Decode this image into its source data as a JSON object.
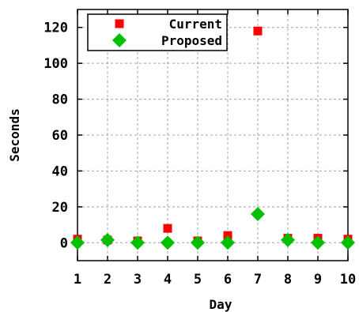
{
  "chart_data": {
    "type": "scatter",
    "xlabel": "Day",
    "ylabel": "Seconds",
    "x": [
      1,
      2,
      3,
      4,
      5,
      6,
      7,
      8,
      9,
      10
    ],
    "xlim": [
      1,
      10
    ],
    "ylim": [
      -10,
      130
    ],
    "x_tick_labels": [
      "1",
      "2",
      "3",
      "4",
      "5",
      "6",
      "7",
      "8",
      "9",
      "10"
    ],
    "y_ticks": [
      0,
      20,
      40,
      60,
      80,
      100,
      120
    ],
    "y_tick_labels": [
      "0",
      "20",
      "40",
      "60",
      "80",
      "100",
      "120"
    ],
    "grid": true,
    "legend_position": "top-left",
    "series": [
      {
        "name": "Current",
        "marker": "square",
        "color": "#ff0000",
        "values": [
          2,
          1.5,
          1,
          8,
          1,
          4,
          118,
          2.5,
          2.5,
          2
        ]
      },
      {
        "name": "Proposed",
        "marker": "diamond",
        "color": "#00c000",
        "values": [
          0,
          1.5,
          0,
          0,
          0,
          0,
          16,
          1.5,
          0,
          0
        ]
      }
    ]
  }
}
